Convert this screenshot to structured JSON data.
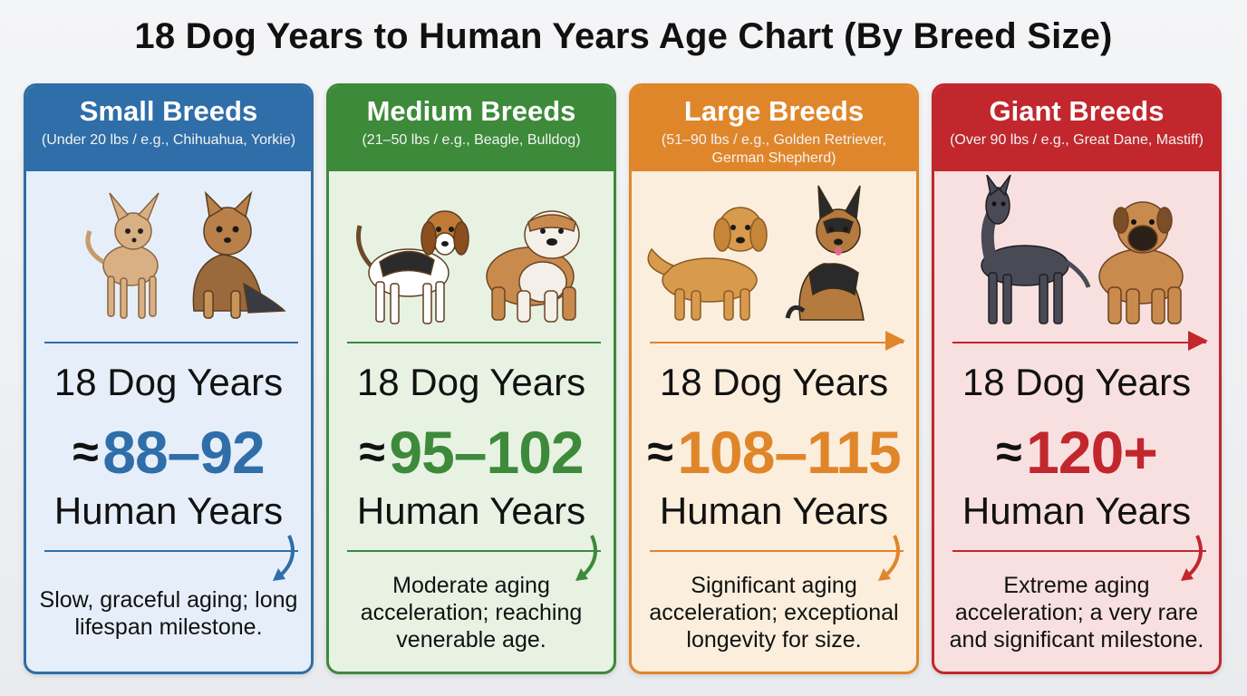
{
  "page": {
    "title": "18 Dog Years to Human Years Age Chart (By Breed Size)"
  },
  "colors": {
    "small": "#2f6ea8",
    "medium": "#3d8a3a",
    "large": "#e0862a",
    "giant": "#c1272d"
  },
  "cards": [
    {
      "name": "Small Breeds",
      "subtitle": "(Under 20 lbs / e.g., Chihuahua, Yorkie)",
      "dog_years": "18 Dog Years",
      "approx": "≈",
      "human_value": "88–92",
      "human_years": "Human Years",
      "description": "Slow, graceful aging; long lifespan milestone.",
      "dogs": [
        "chihuahua-icon",
        "yorkie-icon"
      ]
    },
    {
      "name": "Medium Breeds",
      "subtitle": "(21–50 lbs / e.g., Beagle, Bulldog)",
      "dog_years": "18 Dog Years",
      "approx": "≈",
      "human_value": "95–102",
      "human_years": "Human Years",
      "description": "Moderate aging acceleration; reaching venerable age.",
      "dogs": [
        "beagle-icon",
        "bulldog-icon"
      ]
    },
    {
      "name": "Large Breeds",
      "subtitle": "(51–90 lbs / e.g., Golden Retriever, German Shepherd)",
      "dog_years": "18 Dog Years",
      "approx": "≈",
      "human_value": "108–115",
      "human_years": "Human Years",
      "description": "Significant aging acceleration; exceptional longevity for size.",
      "dogs": [
        "golden-retriever-icon",
        "german-shepherd-icon"
      ]
    },
    {
      "name": "Giant Breeds",
      "subtitle": "(Over 90 lbs / e.g., Great Dane, Mastiff)",
      "dog_years": "18 Dog Years",
      "approx": "≈",
      "human_value": "120+",
      "human_years": "Human Years",
      "description": "Extreme aging acceleration; a very rare and significant milestone.",
      "dogs": [
        "great-dane-icon",
        "mastiff-icon"
      ]
    }
  ]
}
